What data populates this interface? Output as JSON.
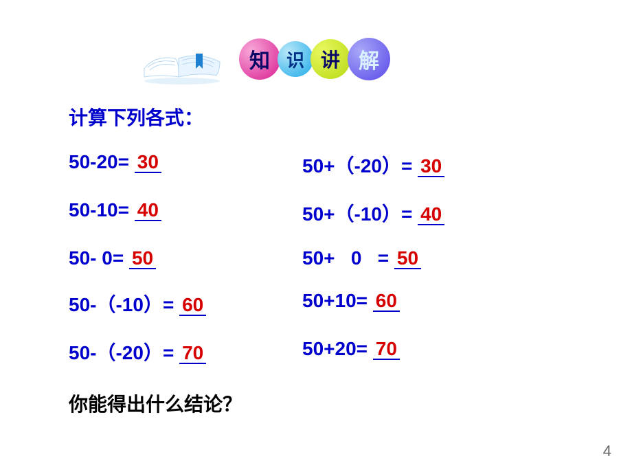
{
  "header": {
    "circles": [
      {
        "char": "知",
        "bg": "radial-gradient(circle at 30% 30%, #f8a8d8, #d81b90)",
        "fg": "#0a0a66"
      },
      {
        "char": "识",
        "bg": "radial-gradient(circle at 30% 30%, #b8e8f8, #1ba8e8)",
        "fg": "#003388"
      },
      {
        "char": "讲",
        "bg": "radial-gradient(circle at 30% 30%, #e8f860, #b8d810)",
        "fg": "#0a0a66"
      },
      {
        "char": "解",
        "bg": "radial-gradient(circle at 30% 30%, #a8a8f8, #5848e8)",
        "fg": "#d8f0ff"
      }
    ]
  },
  "instruction": "计算下列各式：",
  "rows": [
    {
      "left_expr": "50-20= ",
      "left_ans": "30",
      "right_expr": "50+（-20）= ",
      "right_ans": "30"
    },
    {
      "left_expr": "50-10= ",
      "left_ans": "40",
      "right_expr": "50+（-10）= ",
      "right_ans": "40"
    },
    {
      "left_expr": "50- 0= ",
      "left_ans": "50",
      "right_expr": "50+   0   = ",
      "right_ans": "50"
    },
    {
      "left_expr": "50-（-10）= ",
      "left_ans": "60",
      "right_expr": "50+10= ",
      "right_ans": "60"
    },
    {
      "left_expr": "50-（-20）= ",
      "left_ans": "70",
      "right_expr": "50+20= ",
      "right_ans": "70"
    }
  ],
  "conclusion": "你能得出什么结论？",
  "page_number": "4",
  "colors": {
    "expr": "#0000cc",
    "answer": "#d60000",
    "instruction": "#0000cc",
    "conclusion": "#000000",
    "underline": "#0000cc"
  },
  "book_icon": {
    "page_color": "#ffffff",
    "page_edge": "#b8d8f0",
    "bookmark": "#2080d0"
  }
}
